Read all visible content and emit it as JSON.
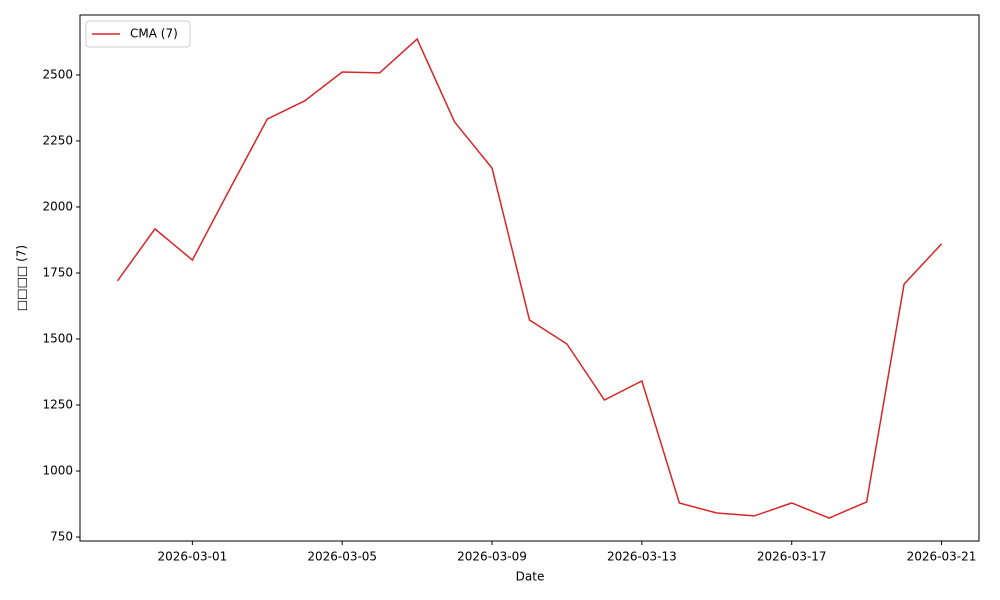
{
  "chart_data": {
    "type": "line",
    "x": [
      "2026-02-27",
      "2026-02-28",
      "2026-03-01",
      "2026-03-02",
      "2026-03-03",
      "2026-03-04",
      "2026-03-05",
      "2026-03-06",
      "2026-03-07",
      "2026-03-08",
      "2026-03-09",
      "2026-03-10",
      "2026-03-11",
      "2026-03-12",
      "2026-03-13",
      "2026-03-14",
      "2026-03-15",
      "2026-03-16",
      "2026-03-17",
      "2026-03-18",
      "2026-03-19",
      "2026-03-20",
      "2026-03-21"
    ],
    "series": [
      {
        "name": "CMA (7)",
        "color": "#d62728",
        "values": [
          1720,
          1917,
          1799,
          2068,
          2333,
          2402,
          2511,
          2508,
          2636,
          2322,
          2147,
          1572,
          1481,
          1269,
          1341,
          879,
          841,
          830,
          879,
          822,
          883,
          1708,
          1860
        ]
      }
    ],
    "xlabel": "Date",
    "ylabel": "□□□□ (7)",
    "xlim": [
      "2026-02-26",
      "2026-03-22"
    ],
    "xticks": [
      "2026-03-01",
      "2026-03-05",
      "2026-03-09",
      "2026-03-13",
      "2026-03-17",
      "2026-03-21"
    ],
    "ylim": [
      735,
      2727
    ],
    "yticks": [
      750,
      1000,
      1250,
      1500,
      1750,
      2000,
      2250,
      2500
    ],
    "legend": "upper left"
  }
}
